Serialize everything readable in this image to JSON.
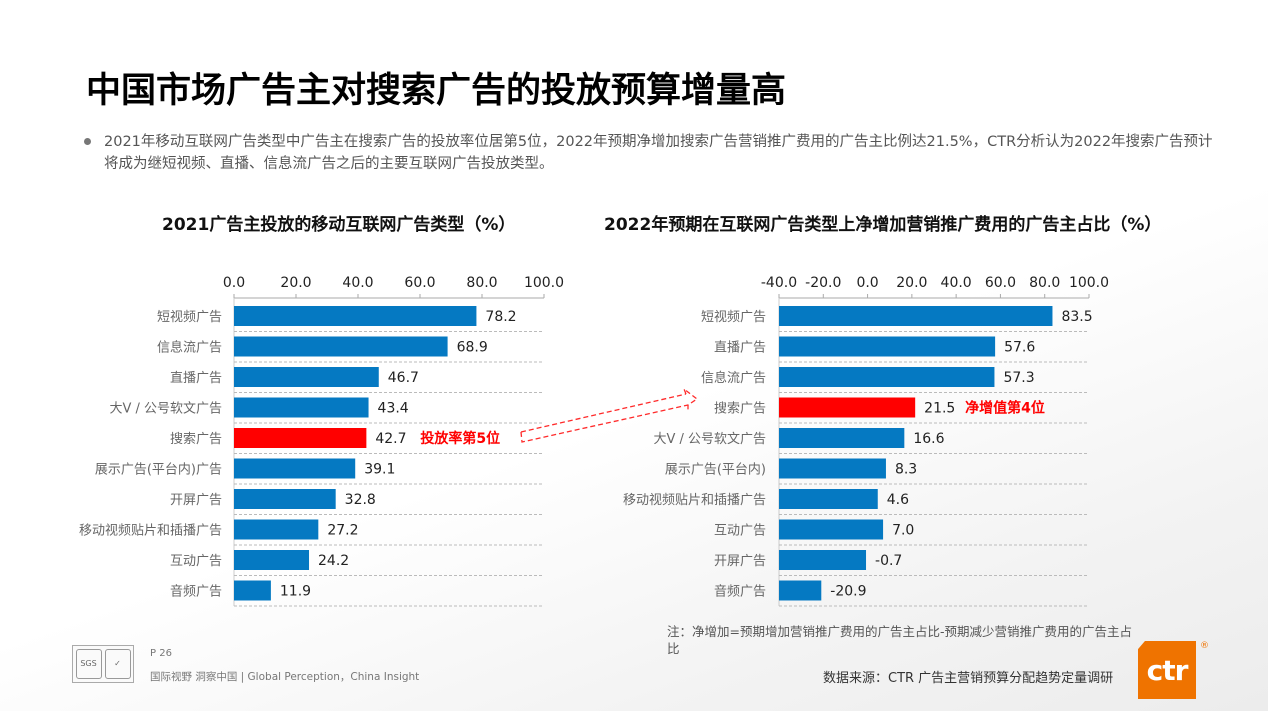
{
  "title": "中国市场广告主对搜索广告的投放预算增量高",
  "bullet": "2021年移动互联网广告类型中广告主在搜索广告的投放率位居第5位，2022年预期净增加搜索广告营销推广费用的广告主比例达21.5%，CTR分析认为2022年搜索广告预计将成为继短视频、直播、信息流广告之后的主要互联网广告投放类型。",
  "colors": {
    "bar": "#0579c2",
    "highlight": "#ff0000",
    "brand": "#ef7300"
  },
  "chart_data": [
    {
      "type": "bar",
      "orientation": "horizontal",
      "title": "2021广告主投放的移动互联网广告类型（%）",
      "categories": [
        "短视频广告",
        "信息流广告",
        "直播广告",
        "大V / 公号软文广告",
        "搜索广告",
        "展示广告(平台内)广告",
        "开屏广告",
        "移动视频贴片和插播广告",
        "互动广告",
        "音频广告"
      ],
      "values": [
        78.2,
        68.9,
        46.7,
        43.4,
        42.7,
        39.1,
        32.8,
        27.2,
        24.2,
        11.9
      ],
      "value_labels": [
        "78.2",
        "68.9",
        "46.7",
        "43.4",
        "42.7",
        "39.1",
        "32.8",
        "27.2",
        "24.2",
        "11.9"
      ],
      "xlim": [
        0,
        100
      ],
      "ticks": [
        "0.0",
        "20.0",
        "40.0",
        "60.0",
        "80.0",
        "100.0"
      ],
      "tick_values": [
        0,
        20,
        40,
        60,
        80,
        100
      ],
      "axis_position": "top",
      "grid": "dashed horizontal separators",
      "highlight_index": 4,
      "annotation": "投放率第5位"
    },
    {
      "type": "bar",
      "orientation": "horizontal",
      "title": "2022年预期在互联网广告类型上净增加营销推广费用的广告主占比（%）",
      "categories": [
        "短视频广告",
        "直播广告",
        "信息流广告",
        "搜索广告",
        "大V / 公号软文广告",
        "展示广告(平台内)",
        "移动视频贴片和插播广告",
        "互动广告",
        "开屏广告",
        "音频广告"
      ],
      "values": [
        83.5,
        57.6,
        57.3,
        21.5,
        16.6,
        8.3,
        4.6,
        7.0,
        -0.7,
        -20.9
      ],
      "value_labels": [
        "83.5",
        "57.6",
        "57.3",
        "21.5",
        "16.6",
        "8.3",
        "4.6",
        "7.0",
        "-0.7",
        "-20.9"
      ],
      "xlim": [
        -40,
        100
      ],
      "ticks": [
        "-40.0",
        "-20.0",
        "0.0",
        "20.0",
        "40.0",
        "60.0",
        "80.0",
        "100.0"
      ],
      "tick_values": [
        -40,
        -20,
        0,
        20,
        40,
        60,
        80,
        100
      ],
      "axis_position": "top",
      "grid": "dashed horizontal separators",
      "highlight_index": 3,
      "annotation": "净增值第4位"
    }
  ],
  "footer": {
    "note": "注：净增加=预期增加营销推广费用的广告主占比-预期减少营销推广费用的广告主占比",
    "source": "数据来源：CTR 广告主营销预算分配趋势定量调研",
    "page": "P 26",
    "slogan": "国际视野  洞察中国 |  Global Perception，China Insight",
    "logo_text": "ctr",
    "cert_text": "SGS"
  }
}
